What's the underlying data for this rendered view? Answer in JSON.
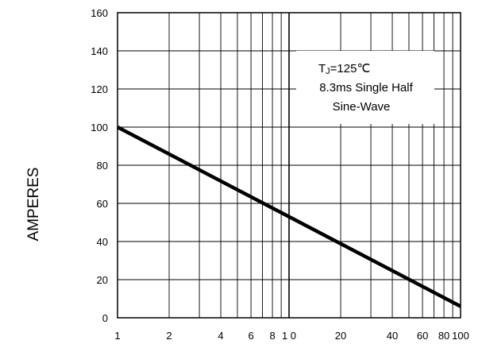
{
  "chart_data": {
    "type": "line",
    "title": "",
    "xlabel": "",
    "ylabel": "AMPERES",
    "x_scale": "log",
    "xlim": [
      1,
      100
    ],
    "ylim": [
      0,
      160
    ],
    "grid": true,
    "x_ticks": [
      {
        "value": 1,
        "label": "1"
      },
      {
        "value": 2,
        "label": "2"
      },
      {
        "value": 4,
        "label": "4"
      },
      {
        "value": 6,
        "label": "6"
      },
      {
        "value": 8,
        "label": "8"
      },
      {
        "value": 10,
        "label": "1 0"
      },
      {
        "value": 20,
        "label": "20"
      },
      {
        "value": 40,
        "label": "40"
      },
      {
        "value": 60,
        "label": "60"
      },
      {
        "value": 80,
        "label": "80"
      },
      {
        "value": 100,
        "label": "100"
      }
    ],
    "x_minor_gridlines": [
      3,
      5,
      7,
      9,
      30,
      50,
      70,
      90
    ],
    "y_ticks": [
      0,
      20,
      40,
      60,
      80,
      100,
      120,
      140,
      160
    ],
    "series": [
      {
        "values": [
          {
            "x": 1,
            "y": 100
          },
          {
            "x": 100,
            "y": 6
          }
        ],
        "color": "#000000"
      }
    ],
    "annotation": {
      "line1_main": "T",
      "line1_sub": "J",
      "line1_rest": "=125℃",
      "line2": "8.3ms Single Half",
      "line3": "Sine-Wave"
    }
  }
}
